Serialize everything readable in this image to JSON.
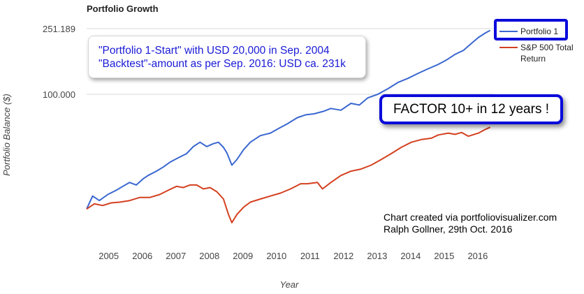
{
  "chart_data": {
    "type": "line",
    "title": "Portfolio Growth",
    "xlabel": "Year",
    "ylabel": "Portfolio Balance ($)",
    "y_scale": "log",
    "ylim": [
      14000,
      300000
    ],
    "xlim": [
      2004.72,
      2016.84
    ],
    "y_ticks": [
      {
        "value": 251189,
        "label": "251.189"
      },
      {
        "value": 100000,
        "label": "100.000"
      }
    ],
    "x_ticks": [
      "2005",
      "2006",
      "2007",
      "2008",
      "2009",
      "2010",
      "2011",
      "2012",
      "2013",
      "2014",
      "2015",
      "2016"
    ],
    "grid": "horizontal",
    "legend_position": "top-right",
    "series": [
      {
        "name": "Portfolio 1",
        "color": "#3a67d0",
        "x": [
          2004.72,
          2004.9,
          2005.1,
          2005.35,
          2005.6,
          2005.8,
          2006.0,
          2006.2,
          2006.4,
          2006.55,
          2006.8,
          2007.0,
          2007.2,
          2007.45,
          2007.7,
          2007.9,
          2008.1,
          2008.3,
          2008.5,
          2008.65,
          2008.8,
          2008.9,
          2009.05,
          2009.2,
          2009.4,
          2009.6,
          2009.9,
          2010.2,
          2010.45,
          2010.7,
          2011.0,
          2011.25,
          2011.5,
          2011.8,
          2012.0,
          2012.3,
          2012.6,
          2012.85,
          2013.1,
          2013.4,
          2013.7,
          2014.0,
          2014.3,
          2014.6,
          2014.9,
          2015.2,
          2015.45,
          2015.7,
          2015.95,
          2016.2,
          2016.4,
          2016.6,
          2016.75
        ],
        "values": [
          20000,
          24000,
          22500,
          24500,
          26000,
          27500,
          29000,
          28000,
          30500,
          32000,
          34000,
          36000,
          38500,
          41000,
          43500,
          48000,
          51000,
          48000,
          50000,
          51000,
          47500,
          44000,
          37000,
          40000,
          46000,
          51000,
          56000,
          58000,
          62000,
          66000,
          72000,
          75000,
          76000,
          79000,
          82000,
          80000,
          88000,
          86000,
          95000,
          100000,
          108000,
          118000,
          125000,
          134000,
          143000,
          152000,
          162000,
          175000,
          185000,
          205000,
          222000,
          236000,
          245000
        ]
      },
      {
        "name": "S&P 500 Total Return",
        "color": "#d44020",
        "x": [
          2004.72,
          2004.95,
          2005.2,
          2005.45,
          2005.7,
          2006.0,
          2006.3,
          2006.6,
          2006.9,
          2007.15,
          2007.4,
          2007.6,
          2007.8,
          2008.0,
          2008.2,
          2008.4,
          2008.6,
          2008.8,
          2008.95,
          2009.05,
          2009.2,
          2009.4,
          2009.6,
          2009.9,
          2010.2,
          2010.5,
          2010.8,
          2011.1,
          2011.3,
          2011.6,
          2011.75,
          2012.0,
          2012.3,
          2012.6,
          2012.9,
          2013.2,
          2013.5,
          2013.8,
          2014.1,
          2014.4,
          2014.7,
          2015.0,
          2015.2,
          2015.5,
          2015.7,
          2015.9,
          2016.1,
          2016.4,
          2016.6,
          2016.75
        ],
        "values": [
          20000,
          21500,
          21000,
          21800,
          22000,
          22500,
          23500,
          23500,
          24500,
          26000,
          27500,
          27000,
          28000,
          28000,
          26500,
          27000,
          25500,
          23000,
          18500,
          16500,
          18500,
          20500,
          22000,
          23000,
          24000,
          25000,
          26500,
          28500,
          28500,
          29000,
          26500,
          29000,
          32000,
          34000,
          35000,
          37000,
          40000,
          43500,
          47500,
          51000,
          53000,
          54000,
          56500,
          58000,
          57000,
          58500,
          55500,
          58000,
          61000,
          63000
        ]
      }
    ]
  },
  "annotations": {
    "note_line1": "\"Portfolio 1-Start\" with USD 20,000 in Sep. 2004",
    "note_line2": "\"Backtest\"-amount as per Sep. 2016: USD ca. 231k",
    "factor": "FACTOR 10+ in 12 years !",
    "credit_line1": "Chart created via portfoliovisualizer.com",
    "credit_line2": "Ralph Gollner, 29th Oct. 2016"
  },
  "legend": {
    "item1_line1": "Portfolio 1",
    "item2_line1": "S&P 500 Total",
    "item2_line2": "Return"
  },
  "colors": {
    "highlight_box": "#0a0adb",
    "grid": "#d9d9d9"
  }
}
